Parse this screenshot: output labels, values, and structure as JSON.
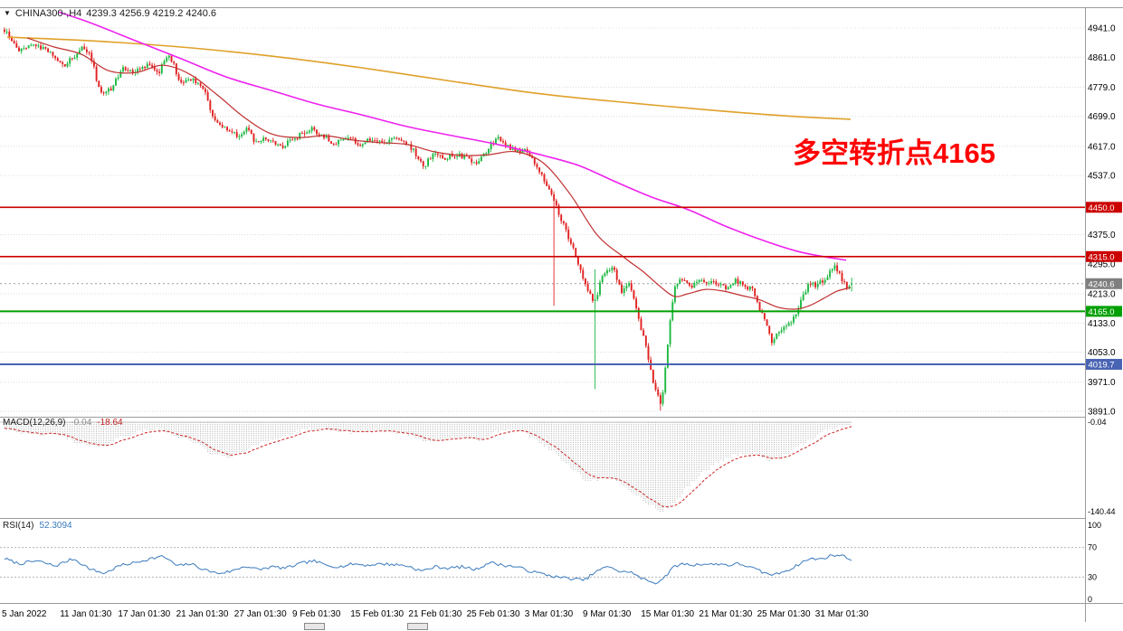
{
  "window": {
    "symbol": "CHINA300-,H4",
    "ohlc": "4239.3 4256.9 4219.2 4240.6"
  },
  "annotation": {
    "text": "多空转折点4165",
    "color": "#FF0000"
  },
  "colors": {
    "up": "#1cb841",
    "down": "#e02020",
    "ma_fast": "#c03030",
    "ma_mid": "#ee22ee",
    "ma_slow": "#dfa029",
    "grid": "#dcdcdc",
    "axis_text": "#000000",
    "hline_red": "#cc0000",
    "hline_green": "#00a000",
    "hline_blue": "#4a64b4",
    "macd_hist": "#b8b8b8",
    "macd_signal": "#cc2222",
    "rsi": "#3a7abd",
    "current_price_tag": "#7f7f7f"
  },
  "current_price": 4240.6,
  "price_axis": {
    "ticks": [
      4941.0,
      4861.0,
      4779.0,
      4699.0,
      4617.0,
      4537.0,
      4375.0,
      4295.0,
      4213.0,
      4133.0,
      4053.0,
      3971.0,
      3891.0
    ],
    "tags": [
      {
        "value": "4450.0",
        "price": 4450.0,
        "bg": "#cc0000"
      },
      {
        "value": "4315.0",
        "price": 4315.0,
        "bg": "#cc0000"
      },
      {
        "value": "4240.6",
        "price": 4240.6,
        "bg": "#7f7f7f"
      },
      {
        "value": "4165.0",
        "price": 4165.0,
        "bg": "#00a000"
      },
      {
        "value": "4019.7",
        "price": 4019.7,
        "bg": "#4a64b4"
      }
    ]
  },
  "hlines": [
    {
      "price": 4450.0,
      "color": "#cc0000",
      "width": 1.6
    },
    {
      "price": 4315.0,
      "color": "#cc0000",
      "width": 1.6
    },
    {
      "price": 4165.0,
      "color": "#00a000",
      "width": 2
    },
    {
      "price": 4019.7,
      "color": "#4a64b4",
      "width": 2
    }
  ],
  "time_axis": [
    "5 Jan 2022",
    "11 Jan 01:30",
    "17 Jan 01:30",
    "21 Jan 01:30",
    "27 Jan 01:30",
    "9 Feb 01:30",
    "15 Feb 01:30",
    "21 Feb 01:30",
    "25 Feb 01:30",
    "3 Mar 01:30",
    "9 Mar 01:30",
    "15 Mar 01:30",
    "21 Mar 01:30",
    "25 Mar 01:30",
    "31 Mar 01:30"
  ],
  "indicators": {
    "macd": {
      "label": "MACD(12,26,9)",
      "value_main": "-0.04",
      "value_signal": "-18.64",
      "axis": [
        {
          "text": "-0.04",
          "value": -0.04
        },
        {
          "text": "-140.44",
          "value": -140.44
        }
      ]
    },
    "rsi": {
      "label": "RSI(14)",
      "value": "52.3094",
      "axis": [
        100,
        70,
        30,
        0
      ],
      "levels": [
        70,
        30
      ]
    }
  },
  "chart_data": [
    {
      "type": "candlestick",
      "title": "CHINA300- H4",
      "ylim": [
        3879,
        4998
      ],
      "grid": "dotted",
      "n_candles": 351,
      "noise": 7,
      "wick": 9,
      "last": {
        "open": 4239.3,
        "high": 4256.9,
        "low": 4219.2,
        "close": 4240.6
      },
      "close_waypoints": [
        [
          4,
          4935
        ],
        [
          20,
          4880
        ],
        [
          35,
          4900
        ],
        [
          55,
          4870
        ],
        [
          70,
          4835
        ],
        [
          90,
          4890
        ],
        [
          100,
          4860
        ],
        [
          110,
          4760
        ],
        [
          120,
          4770
        ],
        [
          135,
          4830
        ],
        [
          150,
          4820
        ],
        [
          163,
          4845
        ],
        [
          175,
          4820
        ],
        [
          185,
          4875
        ],
        [
          200,
          4785
        ],
        [
          212,
          4805
        ],
        [
          225,
          4770
        ],
        [
          235,
          4695
        ],
        [
          250,
          4660
        ],
        [
          262,
          4645
        ],
        [
          272,
          4670
        ],
        [
          282,
          4625
        ],
        [
          295,
          4640
        ],
        [
          308,
          4612
        ],
        [
          320,
          4635
        ],
        [
          333,
          4650
        ],
        [
          345,
          4665
        ],
        [
          358,
          4640
        ],
        [
          370,
          4625
        ],
        [
          383,
          4645
        ],
        [
          395,
          4622
        ],
        [
          408,
          4636
        ],
        [
          420,
          4625
        ],
        [
          433,
          4636
        ],
        [
          445,
          4628
        ],
        [
          455,
          4610
        ],
        [
          467,
          4562
        ],
        [
          478,
          4595
        ],
        [
          490,
          4585
        ],
        [
          502,
          4595
        ],
        [
          514,
          4585
        ],
        [
          526,
          4575
        ],
        [
          538,
          4608
        ],
        [
          548,
          4640
        ],
        [
          558,
          4622
        ],
        [
          570,
          4600
        ],
        [
          580,
          4610
        ],
        [
          590,
          4572
        ],
        [
          600,
          4525
        ],
        [
          610,
          4480
        ],
        [
          622,
          4400
        ],
        [
          634,
          4330
        ],
        [
          646,
          4240
        ],
        [
          656,
          4190
        ],
        [
          666,
          4270
        ],
        [
          676,
          4290
        ],
        [
          686,
          4220
        ],
        [
          694,
          4250
        ],
        [
          704,
          4150
        ],
        [
          712,
          4080
        ],
        [
          722,
          3960
        ],
        [
          730,
          3905
        ],
        [
          736,
          4060
        ],
        [
          744,
          4230
        ],
        [
          752,
          4260
        ],
        [
          762,
          4230
        ],
        [
          772,
          4255
        ],
        [
          782,
          4240
        ],
        [
          792,
          4245
        ],
        [
          802,
          4230
        ],
        [
          812,
          4250
        ],
        [
          822,
          4235
        ],
        [
          832,
          4220
        ],
        [
          842,
          4150
        ],
        [
          852,
          4085
        ],
        [
          862,
          4110
        ],
        [
          872,
          4130
        ],
        [
          882,
          4180
        ],
        [
          892,
          4240
        ],
        [
          902,
          4235
        ],
        [
          912,
          4260
        ],
        [
          922,
          4290
        ],
        [
          930,
          4250
        ],
        [
          936,
          4225
        ],
        [
          941,
          4240.6
        ]
      ],
      "spikes": [
        {
          "x": 612,
          "low": 4180
        },
        {
          "x": 656,
          "low": 3952,
          "high": 4280
        },
        {
          "x": 730,
          "low": 3893
        }
      ],
      "hlines": [
        4450.0,
        4315.0,
        4165.0,
        4019.7
      ],
      "ma_lines": [
        {
          "name": "ma-slow-orange",
          "color": "#dfa029",
          "width": 1.6,
          "points": [
            [
              8,
              4916
            ],
            [
              100,
              4906
            ],
            [
              200,
              4889
            ],
            [
              300,
              4864
            ],
            [
              400,
              4832
            ],
            [
              500,
              4795
            ],
            [
              600,
              4760
            ],
            [
              700,
              4735
            ],
            [
              800,
              4713
            ],
            [
              870,
              4700
            ],
            [
              940,
              4691
            ]
          ]
        },
        {
          "name": "ma-mid-magenta",
          "color": "#ee22ee",
          "width": 1.6,
          "points": [
            [
              65,
              4985
            ],
            [
              100,
              4955
            ],
            [
              150,
              4906
            ],
            [
              200,
              4857
            ],
            [
              250,
              4807
            ],
            [
              300,
              4770
            ],
            [
              350,
              4733
            ],
            [
              400,
              4703
            ],
            [
              450,
              4671
            ],
            [
              500,
              4646
            ],
            [
              550,
              4622
            ],
            [
              600,
              4592
            ],
            [
              640,
              4564
            ],
            [
              680,
              4520
            ],
            [
              720,
              4478
            ],
            [
              760,
              4444
            ],
            [
              800,
              4400
            ],
            [
              840,
              4362
            ],
            [
              880,
              4330
            ],
            [
              910,
              4315
            ],
            [
              935,
              4305
            ]
          ]
        },
        {
          "name": "ma-fast-red",
          "color": "#c03030",
          "width": 1.2,
          "points": [
            [
              30,
              4914
            ],
            [
              60,
              4889
            ],
            [
              90,
              4869
            ],
            [
              120,
              4824
            ],
            [
              150,
              4819
            ],
            [
              180,
              4839
            ],
            [
              210,
              4814
            ],
            [
              240,
              4758
            ],
            [
              270,
              4696
            ],
            [
              300,
              4651
            ],
            [
              330,
              4641
            ],
            [
              360,
              4646
            ],
            [
              390,
              4634
            ],
            [
              420,
              4627
            ],
            [
              450,
              4622
            ],
            [
              480,
              4602
            ],
            [
              510,
              4592
            ],
            [
              540,
              4594
            ],
            [
              570,
              4602
            ],
            [
              600,
              4572
            ],
            [
              630,
              4486
            ],
            [
              660,
              4374
            ],
            [
              690,
              4312
            ],
            [
              710,
              4275
            ],
            [
              730,
              4232
            ],
            [
              745,
              4206
            ],
            [
              760,
              4213
            ],
            [
              780,
              4225
            ],
            [
              800,
              4220
            ],
            [
              820,
              4208
            ],
            [
              840,
              4196
            ],
            [
              860,
              4176
            ],
            [
              880,
              4171
            ],
            [
              895,
              4181
            ],
            [
              910,
              4200
            ],
            [
              925,
              4220
            ],
            [
              940,
              4230
            ]
          ]
        }
      ]
    },
    {
      "type": "macd",
      "title": "MACD(12,26,9)",
      "ylim": [
        -140.44,
        0
      ],
      "last_main": -0.04,
      "last_signal": -18.64,
      "waypoints": [
        [
          4,
          -8
        ],
        [
          30,
          -20
        ],
        [
          60,
          -18
        ],
        [
          90,
          -35
        ],
        [
          110,
          -40
        ],
        [
          130,
          -25
        ],
        [
          150,
          -16
        ],
        [
          170,
          -11
        ],
        [
          190,
          -20
        ],
        [
          210,
          -28
        ],
        [
          230,
          -48
        ],
        [
          250,
          -55
        ],
        [
          270,
          -45
        ],
        [
          290,
          -30
        ],
        [
          310,
          -24
        ],
        [
          330,
          -14
        ],
        [
          350,
          -10
        ],
        [
          370,
          -13
        ],
        [
          390,
          -16
        ],
        [
          410,
          -14
        ],
        [
          430,
          -16
        ],
        [
          450,
          -19
        ],
        [
          470,
          -30
        ],
        [
          490,
          -27
        ],
        [
          510,
          -24
        ],
        [
          530,
          -28
        ],
        [
          550,
          -14
        ],
        [
          570,
          -12
        ],
        [
          590,
          -26
        ],
        [
          610,
          -46
        ],
        [
          630,
          -72
        ],
        [
          650,
          -95
        ],
        [
          665,
          -88
        ],
        [
          680,
          -92
        ],
        [
          700,
          -112
        ],
        [
          715,
          -128
        ],
        [
          730,
          -140
        ],
        [
          745,
          -126
        ],
        [
          760,
          -100
        ],
        [
          775,
          -80
        ],
        [
          790,
          -64
        ],
        [
          805,
          -54
        ],
        [
          820,
          -49
        ],
        [
          835,
          -52
        ],
        [
          850,
          -60
        ],
        [
          865,
          -54
        ],
        [
          880,
          -40
        ],
        [
          895,
          -27
        ],
        [
          910,
          -14
        ],
        [
          925,
          -7
        ],
        [
          941,
          -0.04
        ]
      ],
      "axis": [
        {
          "text": "-0.04",
          "value": -0.04
        },
        {
          "text": "-140.44",
          "value": -140.44
        }
      ]
    },
    {
      "type": "line",
      "title": "RSI(14)",
      "ylim": [
        0,
        100
      ],
      "levels": [
        70,
        30
      ],
      "last": 52.31,
      "axis": [
        100,
        70,
        30,
        0
      ],
      "waypoints": [
        [
          4,
          55
        ],
        [
          20,
          48
        ],
        [
          40,
          52
        ],
        [
          60,
          45
        ],
        [
          80,
          55
        ],
        [
          100,
          40
        ],
        [
          115,
          35
        ],
        [
          130,
          45
        ],
        [
          150,
          50
        ],
        [
          165,
          55
        ],
        [
          180,
          58
        ],
        [
          195,
          45
        ],
        [
          210,
          48
        ],
        [
          225,
          40
        ],
        [
          240,
          35
        ],
        [
          255,
          38
        ],
        [
          270,
          45
        ],
        [
          285,
          40
        ],
        [
          300,
          44
        ],
        [
          315,
          42
        ],
        [
          330,
          48
        ],
        [
          345,
          52
        ],
        [
          360,
          46
        ],
        [
          375,
          44
        ],
        [
          390,
          48
        ],
        [
          405,
          46
        ],
        [
          420,
          48
        ],
        [
          435,
          47
        ],
        [
          450,
          45
        ],
        [
          465,
          38
        ],
        [
          480,
          44
        ],
        [
          495,
          42
        ],
        [
          510,
          44
        ],
        [
          525,
          40
        ],
        [
          540,
          50
        ],
        [
          555,
          46
        ],
        [
          570,
          44
        ],
        [
          585,
          38
        ],
        [
          600,
          34
        ],
        [
          615,
          30
        ],
        [
          630,
          28
        ],
        [
          645,
          26
        ],
        [
          655,
          35
        ],
        [
          665,
          42
        ],
        [
          675,
          44
        ],
        [
          685,
          36
        ],
        [
          695,
          38
        ],
        [
          705,
          30
        ],
        [
          715,
          25
        ],
        [
          725,
          22
        ],
        [
          735,
          32
        ],
        [
          745,
          45
        ],
        [
          755,
          48
        ],
        [
          765,
          46
        ],
        [
          775,
          48
        ],
        [
          785,
          47
        ],
        [
          795,
          48
        ],
        [
          805,
          46
        ],
        [
          815,
          48
        ],
        [
          825,
          45
        ],
        [
          835,
          40
        ],
        [
          845,
          35
        ],
        [
          855,
          33
        ],
        [
          865,
          38
        ],
        [
          875,
          42
        ],
        [
          885,
          50
        ],
        [
          895,
          55
        ],
        [
          905,
          54
        ],
        [
          915,
          58
        ],
        [
          925,
          60
        ],
        [
          935,
          57
        ],
        [
          941,
          52.31
        ]
      ]
    }
  ]
}
